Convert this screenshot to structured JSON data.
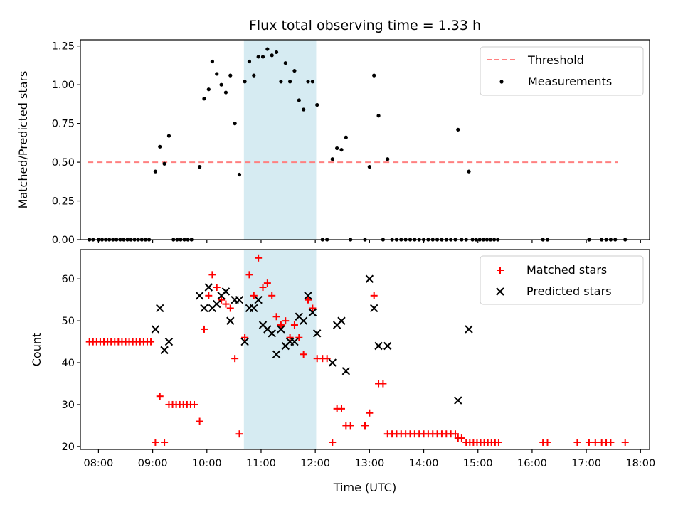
{
  "chart_data": [
    {
      "type": "scatter",
      "title": "Flux total observing time = 1.33 h",
      "ylabel": "Matched/Predicted stars",
      "xlim": [
        "07:40",
        "18:10"
      ],
      "ylim": [
        0,
        1.29
      ],
      "y_ticks": [
        "0.00",
        "0.25",
        "0.50",
        "0.75",
        "1.00",
        "1.25"
      ],
      "highlight_span": {
        "start": "10:41",
        "end": "12:01",
        "color": "#add8e6"
      },
      "legend_position": "top-right",
      "threshold": {
        "name": "Threshold",
        "y": 0.5,
        "x_start": "07:48",
        "x_end": "17:35",
        "color": "#ff8080",
        "style": "dashed"
      },
      "series": [
        {
          "name": "Measurements",
          "color": "#000000",
          "marker": "dot",
          "points": [
            [
              "07:50",
              0
            ],
            [
              "07:54",
              0
            ],
            [
              "08:00",
              0
            ],
            [
              "08:04",
              0
            ],
            [
              "08:08",
              0
            ],
            [
              "08:12",
              0
            ],
            [
              "08:16",
              0
            ],
            [
              "08:20",
              0
            ],
            [
              "08:24",
              0
            ],
            [
              "08:28",
              0
            ],
            [
              "08:32",
              0
            ],
            [
              "08:36",
              0
            ],
            [
              "08:40",
              0
            ],
            [
              "08:44",
              0
            ],
            [
              "08:48",
              0
            ],
            [
              "08:52",
              0
            ],
            [
              "08:56",
              0
            ],
            [
              "09:03",
              0.44
            ],
            [
              "09:08",
              0.6
            ],
            [
              "09:13",
              0.49
            ],
            [
              "09:18",
              0.67
            ],
            [
              "09:23",
              0
            ],
            [
              "09:27",
              0
            ],
            [
              "09:31",
              0
            ],
            [
              "09:35",
              0
            ],
            [
              "09:39",
              0
            ],
            [
              "09:43",
              0
            ],
            [
              "09:52",
              0.47
            ],
            [
              "09:57",
              0.91
            ],
            [
              "10:02",
              0.97
            ],
            [
              "10:06",
              1.15
            ],
            [
              "10:11",
              1.07
            ],
            [
              "10:16",
              1.0
            ],
            [
              "10:21",
              0.95
            ],
            [
              "10:26",
              1.06
            ],
            [
              "10:31",
              0.75
            ],
            [
              "10:36",
              0.42
            ],
            [
              "10:42",
              1.02
            ],
            [
              "10:47",
              1.15
            ],
            [
              "10:52",
              1.06
            ],
            [
              "10:57",
              1.18
            ],
            [
              "11:02",
              1.18
            ],
            [
              "11:07",
              1.23
            ],
            [
              "11:12",
              1.19
            ],
            [
              "11:17",
              1.21
            ],
            [
              "11:22",
              1.02
            ],
            [
              "11:27",
              1.14
            ],
            [
              "11:32",
              1.02
            ],
            [
              "11:37",
              1.09
            ],
            [
              "11:42",
              0.9
            ],
            [
              "11:47",
              0.84
            ],
            [
              "11:52",
              1.02
            ],
            [
              "11:57",
              1.02
            ],
            [
              "12:02",
              0.87
            ],
            [
              "12:08",
              0
            ],
            [
              "12:13",
              0
            ],
            [
              "12:19",
              0.52
            ],
            [
              "12:24",
              0.59
            ],
            [
              "12:29",
              0.58
            ],
            [
              "12:34",
              0.66
            ],
            [
              "12:39",
              0
            ],
            [
              "12:55",
              0
            ],
            [
              "13:00",
              0.47
            ],
            [
              "13:05",
              1.06
            ],
            [
              "13:10",
              0.8
            ],
            [
              "13:15",
              0
            ],
            [
              "13:20",
              0.52
            ],
            [
              "13:25",
              0
            ],
            [
              "13:30",
              0
            ],
            [
              "13:35",
              0
            ],
            [
              "13:40",
              0
            ],
            [
              "13:45",
              0
            ],
            [
              "13:50",
              0
            ],
            [
              "13:55",
              0
            ],
            [
              "14:00",
              0
            ],
            [
              "14:05",
              0
            ],
            [
              "14:10",
              0
            ],
            [
              "14:15",
              0
            ],
            [
              "14:20",
              0
            ],
            [
              "14:25",
              0
            ],
            [
              "14:30",
              0
            ],
            [
              "14:35",
              0
            ],
            [
              "14:38",
              0.71
            ],
            [
              "14:42",
              0
            ],
            [
              "14:47",
              0
            ],
            [
              "14:50",
              0.44
            ],
            [
              "14:54",
              0
            ],
            [
              "14:58",
              0
            ],
            [
              "15:02",
              0
            ],
            [
              "15:06",
              0
            ],
            [
              "15:10",
              0
            ],
            [
              "15:14",
              0
            ],
            [
              "15:18",
              0
            ],
            [
              "15:22",
              0
            ],
            [
              "16:12",
              0
            ],
            [
              "16:17",
              0
            ],
            [
              "17:03",
              0
            ],
            [
              "17:17",
              0
            ],
            [
              "17:22",
              0
            ],
            [
              "17:27",
              0
            ],
            [
              "17:32",
              0
            ],
            [
              "17:43",
              0
            ]
          ]
        }
      ]
    },
    {
      "type": "scatter",
      "xlabel": "Time (UTC)",
      "ylabel": "Count",
      "xlim": [
        "07:40",
        "18:10"
      ],
      "ylim": [
        19.3,
        67
      ],
      "x_ticks": [
        "08:00",
        "09:00",
        "10:00",
        "11:00",
        "12:00",
        "13:00",
        "14:00",
        "15:00",
        "16:00",
        "17:00",
        "18:00"
      ],
      "y_ticks": [
        "20",
        "30",
        "40",
        "50",
        "60"
      ],
      "highlight_span": {
        "start": "10:41",
        "end": "12:01",
        "color": "#add8e6"
      },
      "legend_position": "top-right",
      "series": [
        {
          "name": "Matched stars",
          "color": "#ff0000",
          "marker": "plus",
          "points": [
            [
              "07:50",
              45
            ],
            [
              "07:54",
              45
            ],
            [
              "07:58",
              45
            ],
            [
              "08:02",
              45
            ],
            [
              "08:06",
              45
            ],
            [
              "08:10",
              45
            ],
            [
              "08:14",
              45
            ],
            [
              "08:18",
              45
            ],
            [
              "08:22",
              45
            ],
            [
              "08:26",
              45
            ],
            [
              "08:30",
              45
            ],
            [
              "08:34",
              45
            ],
            [
              "08:38",
              45
            ],
            [
              "08:42",
              45
            ],
            [
              "08:46",
              45
            ],
            [
              "08:50",
              45
            ],
            [
              "08:54",
              45
            ],
            [
              "08:58",
              45
            ],
            [
              "09:03",
              21
            ],
            [
              "09:08",
              32
            ],
            [
              "09:13",
              21
            ],
            [
              "09:18",
              30
            ],
            [
              "09:22",
              30
            ],
            [
              "09:26",
              30
            ],
            [
              "09:30",
              30
            ],
            [
              "09:34",
              30
            ],
            [
              "09:38",
              30
            ],
            [
              "09:42",
              30
            ],
            [
              "09:46",
              30
            ],
            [
              "09:52",
              26
            ],
            [
              "09:57",
              48
            ],
            [
              "10:02",
              56
            ],
            [
              "10:06",
              61
            ],
            [
              "10:11",
              58
            ],
            [
              "10:16",
              55
            ],
            [
              "10:21",
              54
            ],
            [
              "10:26",
              53
            ],
            [
              "10:31",
              41
            ],
            [
              "10:36",
              23
            ],
            [
              "10:42",
              46
            ],
            [
              "10:47",
              61
            ],
            [
              "10:52",
              56
            ],
            [
              "10:57",
              65
            ],
            [
              "11:02",
              58
            ],
            [
              "11:07",
              59
            ],
            [
              "11:12",
              56
            ],
            [
              "11:17",
              51
            ],
            [
              "11:22",
              49
            ],
            [
              "11:27",
              50
            ],
            [
              "11:32",
              46
            ],
            [
              "11:37",
              49
            ],
            [
              "11:42",
              46
            ],
            [
              "11:47",
              42
            ],
            [
              "11:52",
              55
            ],
            [
              "11:57",
              53
            ],
            [
              "12:02",
              41
            ],
            [
              "12:08",
              41
            ],
            [
              "12:13",
              41
            ],
            [
              "12:19",
              21
            ],
            [
              "12:24",
              29
            ],
            [
              "12:29",
              29
            ],
            [
              "12:34",
              25
            ],
            [
              "12:39",
              25
            ],
            [
              "12:55",
              25
            ],
            [
              "13:00",
              28
            ],
            [
              "13:05",
              56
            ],
            [
              "13:10",
              35
            ],
            [
              "13:15",
              35
            ],
            [
              "13:20",
              23
            ],
            [
              "13:25",
              23
            ],
            [
              "13:30",
              23
            ],
            [
              "13:35",
              23
            ],
            [
              "13:40",
              23
            ],
            [
              "13:45",
              23
            ],
            [
              "13:50",
              23
            ],
            [
              "13:55",
              23
            ],
            [
              "14:00",
              23
            ],
            [
              "14:05",
              23
            ],
            [
              "14:10",
              23
            ],
            [
              "14:15",
              23
            ],
            [
              "14:20",
              23
            ],
            [
              "14:25",
              23
            ],
            [
              "14:30",
              23
            ],
            [
              "14:35",
              23
            ],
            [
              "14:38",
              22
            ],
            [
              "14:42",
              22
            ],
            [
              "14:47",
              21
            ],
            [
              "14:51",
              21
            ],
            [
              "14:55",
              21
            ],
            [
              "14:59",
              21
            ],
            [
              "15:03",
              21
            ],
            [
              "15:07",
              21
            ],
            [
              "15:11",
              21
            ],
            [
              "15:15",
              21
            ],
            [
              "15:19",
              21
            ],
            [
              "15:23",
              21
            ],
            [
              "16:12",
              21
            ],
            [
              "16:17",
              21
            ],
            [
              "16:50",
              21
            ],
            [
              "17:03",
              21
            ],
            [
              "17:10",
              21
            ],
            [
              "17:17",
              21
            ],
            [
              "17:22",
              21
            ],
            [
              "17:27",
              21
            ],
            [
              "17:43",
              21
            ]
          ]
        },
        {
          "name": "Predicted stars",
          "color": "#000000",
          "marker": "x",
          "points": [
            [
              "09:03",
              48
            ],
            [
              "09:08",
              53
            ],
            [
              "09:13",
              43
            ],
            [
              "09:18",
              45
            ],
            [
              "09:52",
              56
            ],
            [
              "09:57",
              53
            ],
            [
              "10:02",
              58
            ],
            [
              "10:06",
              53
            ],
            [
              "10:11",
              54
            ],
            [
              "10:16",
              56
            ],
            [
              "10:21",
              57
            ],
            [
              "10:26",
              50
            ],
            [
              "10:31",
              55
            ],
            [
              "10:36",
              55
            ],
            [
              "10:42",
              45
            ],
            [
              "10:47",
              53
            ],
            [
              "10:52",
              53
            ],
            [
              "10:57",
              55
            ],
            [
              "11:02",
              49
            ],
            [
              "11:07",
              48
            ],
            [
              "11:12",
              47
            ],
            [
              "11:17",
              42
            ],
            [
              "11:22",
              48
            ],
            [
              "11:27",
              44
            ],
            [
              "11:32",
              45
            ],
            [
              "11:37",
              45
            ],
            [
              "11:42",
              51
            ],
            [
              "11:47",
              50
            ],
            [
              "11:52",
              56
            ],
            [
              "11:57",
              52
            ],
            [
              "12:02",
              47
            ],
            [
              "12:19",
              40
            ],
            [
              "12:24",
              49
            ],
            [
              "12:29",
              50
            ],
            [
              "12:34",
              38
            ],
            [
              "13:00",
              60
            ],
            [
              "13:05",
              53
            ],
            [
              "13:10",
              44
            ],
            [
              "13:20",
              44
            ],
            [
              "14:38",
              31
            ],
            [
              "14:50",
              48
            ]
          ]
        }
      ]
    }
  ]
}
